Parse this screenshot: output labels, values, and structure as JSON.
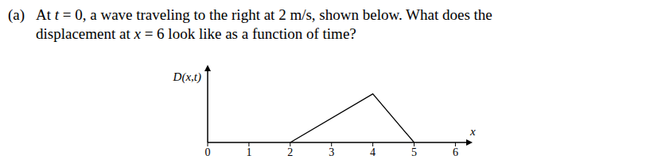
{
  "problem": {
    "label": "(a)",
    "lines": [
      [
        {
          "text": "At "
        },
        {
          "math": "t"
        },
        {
          "text": " = 0, a wave traveling to the right at 2 m/s, shown below. What does the"
        }
      ],
      [
        {
          "text": "displacement at "
        },
        {
          "math": "x"
        },
        {
          "text": " = 6 look like as a function of time?"
        }
      ]
    ]
  },
  "chart_data": {
    "type": "line",
    "y_label": "D(x,t)",
    "x_label": "x",
    "x": [
      2,
      4,
      5
    ],
    "values": [
      0,
      1,
      0
    ],
    "color": "#000000",
    "xlim": [
      0,
      6.3
    ],
    "xticks": [
      0,
      1,
      2,
      3,
      4,
      5,
      6
    ],
    "ylim": [
      0,
      1.5
    ],
    "tick_labels": "x",
    "grid": false
  }
}
